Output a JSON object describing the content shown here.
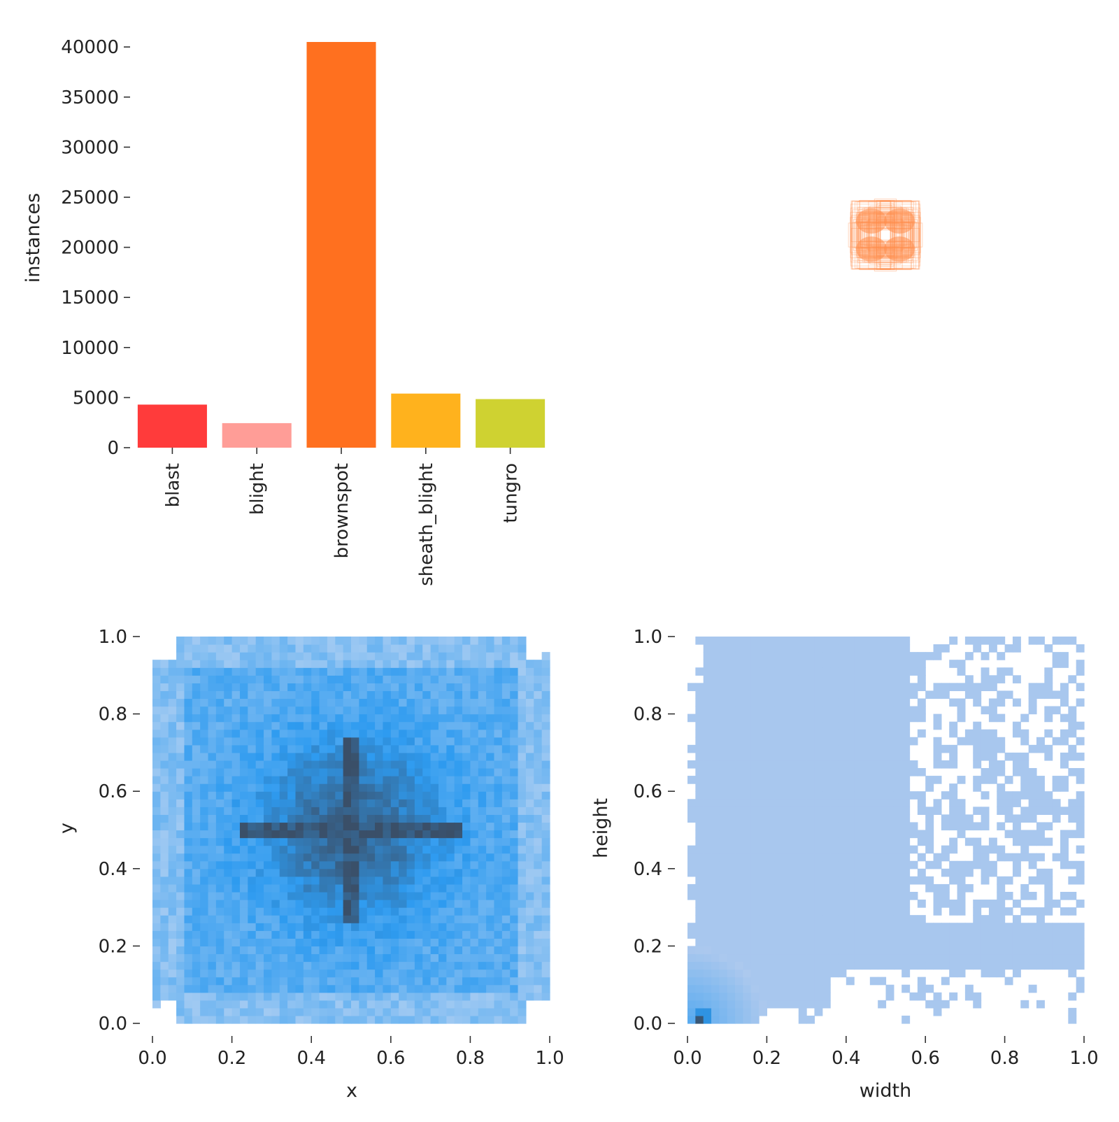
{
  "chart_data": [
    {
      "type": "bar",
      "categories": [
        "blast",
        "blight",
        "brownspot",
        "sheath_blight",
        "tungro"
      ],
      "values": [
        4300,
        2450,
        40500,
        5400,
        4850
      ],
      "colors": [
        "#ff3b3b",
        "#ff9d97",
        "#ff701f",
        "#ffb21d",
        "#cfd231"
      ],
      "xlabel": "",
      "ylabel": "instances",
      "ylim": [
        0,
        40500
      ],
      "yticks": [
        "0",
        "5000",
        "10000",
        "15000",
        "20000",
        "25000",
        "30000",
        "35000",
        "40000"
      ],
      "grid": false
    },
    {
      "type": "box_overlay",
      "description_color": "#ff8c4a",
      "xlim": [
        0,
        1000
      ],
      "ylim": [
        0,
        1000
      ]
    },
    {
      "type": "heatmap",
      "xlabel": "x",
      "ylabel": "y",
      "xlim": [
        0,
        1
      ],
      "ylim": [
        0,
        1
      ],
      "xticks": [
        "0.0",
        "0.2",
        "0.4",
        "0.6",
        "0.8",
        "1.0"
      ],
      "yticks": [
        "0.0",
        "0.2",
        "0.4",
        "0.6",
        "0.8",
        "1.0"
      ],
      "bins": 50,
      "color_low": "#a9cdf2",
      "color_mid": "#2e9bf0",
      "color_high": "#3a4f68",
      "grid": false
    },
    {
      "type": "heatmap",
      "xlabel": "width",
      "ylabel": "height",
      "xlim": [
        0,
        1
      ],
      "ylim": [
        0,
        1
      ],
      "xticks": [
        "0.0",
        "0.2",
        "0.4",
        "0.6",
        "0.8",
        "1.0"
      ],
      "yticks": [
        "0.0",
        "0.2",
        "0.4",
        "0.6",
        "0.8",
        "1.0"
      ],
      "bins": 50,
      "color_low": "#adc9ee",
      "color_mid": "#2e9bf0",
      "color_high": "#3a4f68",
      "grid": false
    }
  ]
}
